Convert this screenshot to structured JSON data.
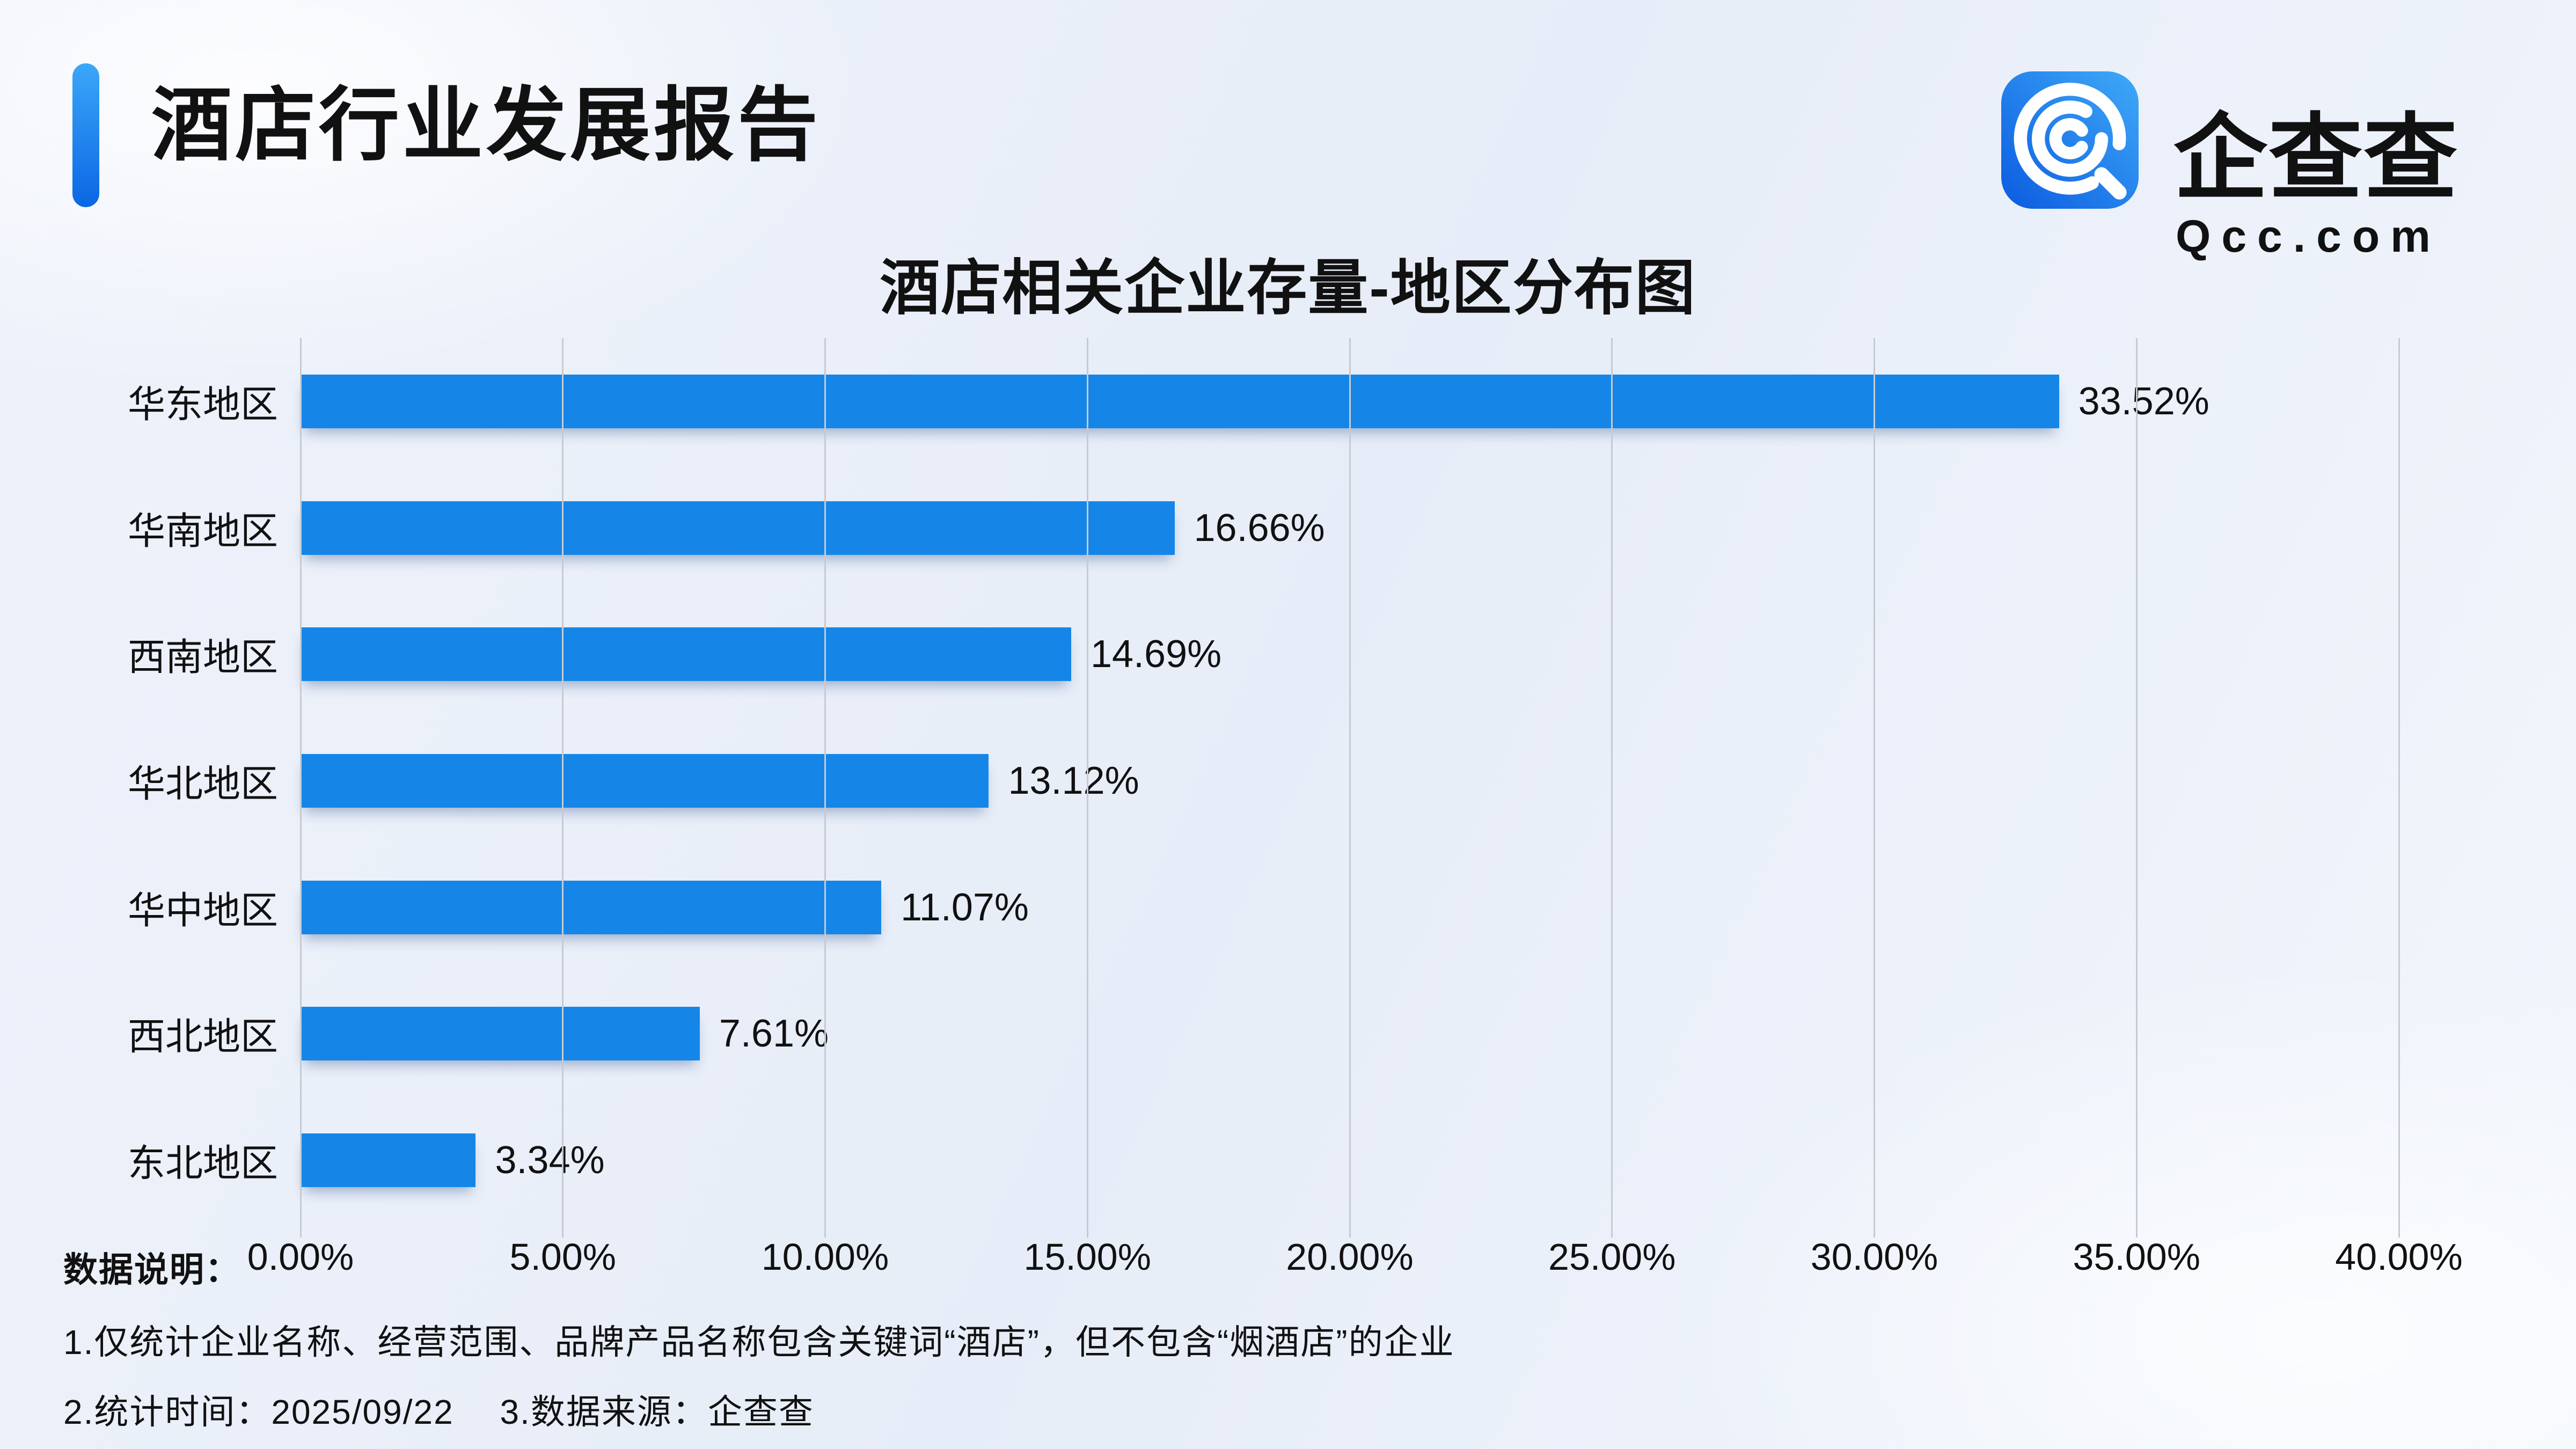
{
  "header": {
    "title": "酒店行业发展报告"
  },
  "logo": {
    "name": "企查查",
    "domain": "Qcc.com",
    "icon": "qcc-spiral-magnifier-icon"
  },
  "chart_data": {
    "type": "bar",
    "orientation": "horizontal",
    "title": "酒店相关企业存量-地区分布图",
    "categories": [
      "华东地区",
      "华南地区",
      "西南地区",
      "华北地区",
      "华中地区",
      "西北地区",
      "东北地区"
    ],
    "values": [
      33.52,
      16.66,
      14.69,
      13.12,
      11.07,
      7.61,
      3.34
    ],
    "value_labels": [
      "33.52%",
      "16.66%",
      "14.69%",
      "13.12%",
      "11.07%",
      "7.61%",
      "3.34%"
    ],
    "xlim": [
      0,
      40
    ],
    "x_ticks": [
      "0.00%",
      "5.00%",
      "10.00%",
      "15.00%",
      "20.00%",
      "25.00%",
      "30.00%",
      "35.00%",
      "40.00%"
    ],
    "grid": "vertical-gridlines-on",
    "legend": "none",
    "bar_color": "#1586E8"
  },
  "footer": {
    "label": "数据说明：",
    "notes": [
      "1.仅统计企业名称、经营范围、品牌产品名称包含关键词“酒店”，但不包含“烟酒店”的企业",
      "2.统计时间：2025/09/22　 3.数据来源：企查查"
    ]
  },
  "colors": {
    "bar": "#1586E8",
    "accent_top": "#3BA7F8",
    "accent_bottom": "#0B66E4",
    "background": "#EDF1F9",
    "gridline": "#C6CAD3",
    "text": "#111111",
    "logo_gradient_dark": "#0B5BE0",
    "logo_gradient_light": "#3FAAF8"
  }
}
